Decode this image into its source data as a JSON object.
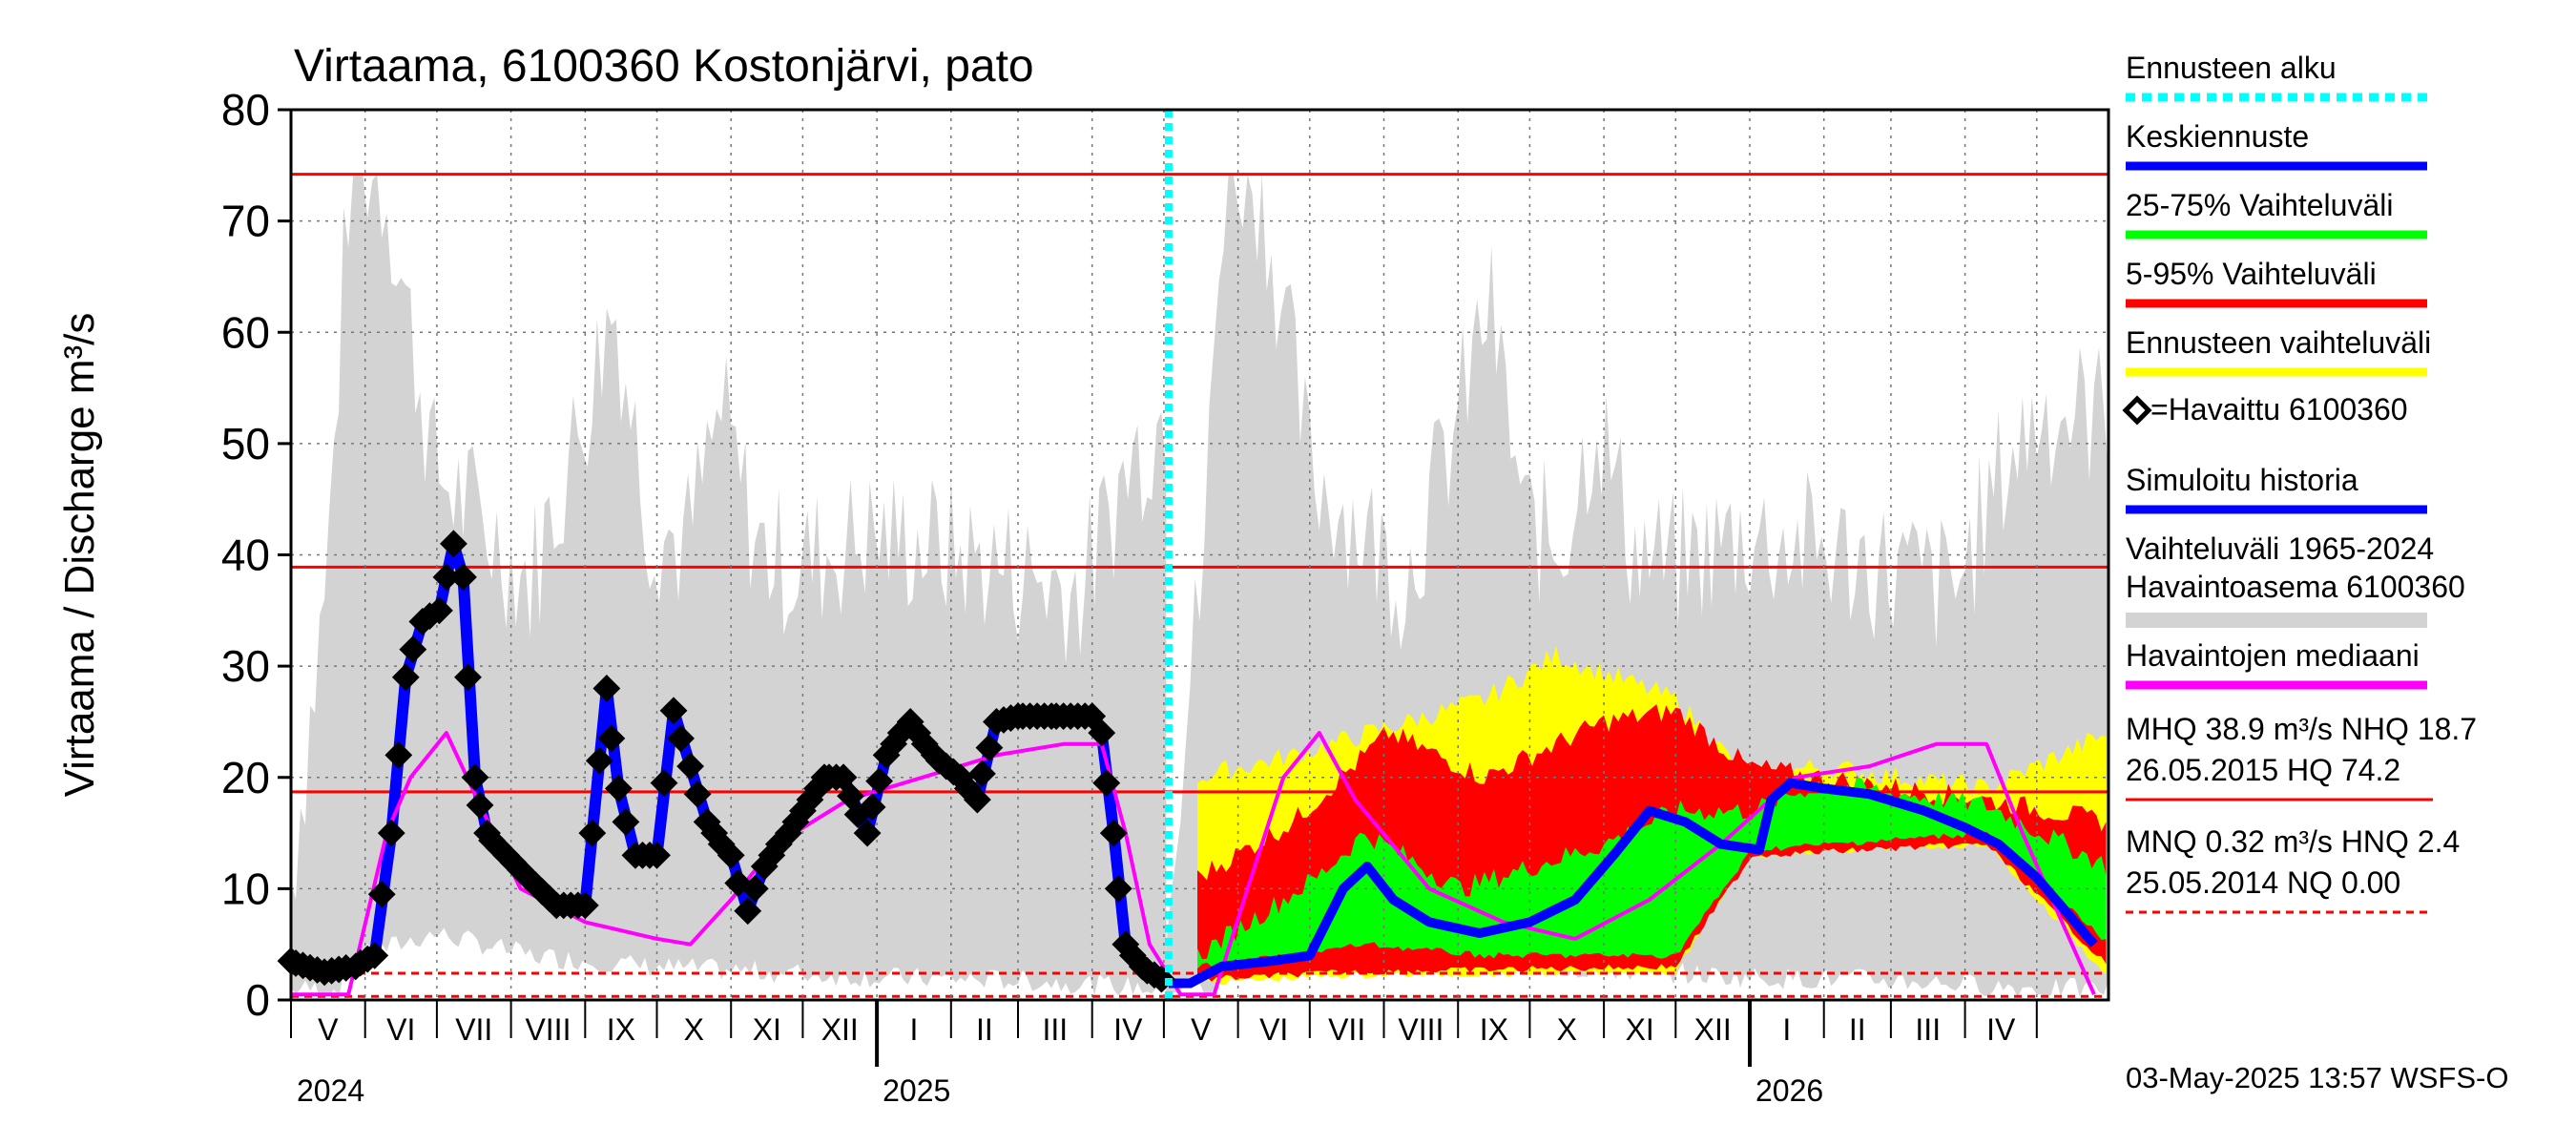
{
  "chart_data": {
    "type": "line",
    "title": "Virtaama, 6100360 Kostonjärvi, pato",
    "ylabel": "Virtaama / Discharge    m³/s",
    "ylim": [
      0,
      80
    ],
    "yticks": [
      "0",
      "10",
      "20",
      "30",
      "40",
      "50",
      "60",
      "70",
      "80"
    ],
    "months": [
      "V",
      "VI",
      "VII",
      "VIII",
      "IX",
      "X",
      "XI",
      "XII",
      "I",
      "II",
      "III",
      "IV",
      "V",
      "VI",
      "VII",
      "VIII",
      "IX",
      "X",
      "XI",
      "XII",
      "I",
      "II",
      "III",
      "IV"
    ],
    "years": [
      "2024",
      "2025",
      "2026"
    ],
    "x_start": "2024-05-01",
    "x_end": "2026-05-31",
    "forecast_start": "2025-05-03",
    "reference_lines": [
      {
        "label": "HQ",
        "value": 74.2,
        "style": "solid",
        "color": "#ff0000"
      },
      {
        "label": "MHQ",
        "value": 38.9,
        "style": "solid",
        "color": "#ff0000"
      },
      {
        "label": "NHQ",
        "value": 18.7,
        "style": "solid",
        "color": "#ff0000"
      },
      {
        "label": "HNQ",
        "value": 2.4,
        "style": "dashed",
        "color": "#ff0000"
      },
      {
        "label": "MNQ",
        "value": 0.32,
        "style": "dashed",
        "color": "#ff0000"
      }
    ],
    "series": [
      {
        "name": "Havaittu 6100360",
        "color": "#000000",
        "x": [
          "2024-05-01",
          "2024-05-15",
          "2024-05-28",
          "2024-06-05",
          "2024-06-12",
          "2024-06-18",
          "2024-06-25",
          "2024-07-02",
          "2024-07-08",
          "2024-07-12",
          "2024-07-17",
          "2024-07-22",
          "2024-07-30",
          "2024-08-08",
          "2024-08-20",
          "2024-09-01",
          "2024-09-10",
          "2024-09-15",
          "2024-09-22",
          "2024-10-01",
          "2024-10-08",
          "2024-10-15",
          "2024-10-22",
          "2024-11-01",
          "2024-11-08",
          "2024-11-15",
          "2024-11-25",
          "2024-12-01",
          "2024-12-10",
          "2024-12-18",
          "2024-12-28",
          "2025-01-05",
          "2025-01-15",
          "2025-01-25",
          "2025-02-05",
          "2025-02-12",
          "2025-02-20",
          "2025-03-01",
          "2025-03-15",
          "2025-04-01",
          "2025-04-05",
          "2025-04-10",
          "2025-04-15",
          "2025-04-22",
          "2025-05-03"
        ],
        "values": [
          3.5,
          2.5,
          3.0,
          4.0,
          15.0,
          29.0,
          34.0,
          35.0,
          41.0,
          38.0,
          20.0,
          15.0,
          13.0,
          11.0,
          8.5,
          8.5,
          28.0,
          19.0,
          13.0,
          13.0,
          26.0,
          21.0,
          16.0,
          13.0,
          8.0,
          12.0,
          15.0,
          17.0,
          20.0,
          20.0,
          15.0,
          22.0,
          25.0,
          22.0,
          20.0,
          18.0,
          25.0,
          25.5,
          25.5,
          25.5,
          24.0,
          15.0,
          5.0,
          3.0,
          1.5
        ]
      },
      {
        "name": "Havaintojen mediaani",
        "color": "#ff00ff",
        "x": [
          "2024-05-01",
          "2024-05-25",
          "2024-06-10",
          "2024-06-20",
          "2024-07-05",
          "2024-07-18",
          "2024-08-05",
          "2024-09-01",
          "2024-10-01",
          "2024-10-15",
          "2024-11-01",
          "2024-11-20",
          "2024-12-20",
          "2025-01-20",
          "2025-02-20",
          "2025-03-20",
          "2025-04-05",
          "2025-04-15",
          "2025-04-25",
          "2025-05-08",
          "2025-05-22",
          "2025-06-05",
          "2025-06-20",
          "2025-07-05",
          "2025-07-20",
          "2025-08-20",
          "2025-09-20",
          "2025-10-20",
          "2025-11-20",
          "2025-12-20",
          "2026-01-20",
          "2026-02-20",
          "2026-03-20",
          "2026-04-10",
          "2026-04-25",
          "2026-05-25"
        ],
        "values": [
          0.5,
          0.5,
          15.0,
          20.0,
          24.0,
          18.0,
          10.0,
          7.0,
          5.5,
          5.0,
          9.0,
          14.0,
          18.0,
          20.0,
          22.0,
          23.0,
          23.0,
          15.0,
          5.0,
          0.5,
          0.5,
          10.0,
          20.0,
          24.0,
          18.0,
          10.0,
          7.0,
          5.5,
          9.0,
          14.0,
          20.0,
          21.0,
          23.0,
          23.0,
          15.0,
          0.5
        ]
      },
      {
        "name": "Keskiennuste",
        "color": "#0000ff",
        "x": [
          "2025-05-03",
          "2025-05-12",
          "2025-05-25",
          "2025-06-15",
          "2025-07-01",
          "2025-07-15",
          "2025-07-25",
          "2025-08-05",
          "2025-08-20",
          "2025-09-10",
          "2025-10-01",
          "2025-10-20",
          "2025-11-05",
          "2025-11-20",
          "2025-12-05",
          "2025-12-20",
          "2026-01-05",
          "2026-01-10",
          "2026-01-18",
          "2026-02-01",
          "2026-02-20",
          "2026-03-15",
          "2026-04-01",
          "2026-04-15",
          "2026-05-01",
          "2026-05-25"
        ],
        "values": [
          1.5,
          1.5,
          3.0,
          3.5,
          4.0,
          10.0,
          12.0,
          9.0,
          7.0,
          6.0,
          7.0,
          9.0,
          13.0,
          17.0,
          16.0,
          14.0,
          13.5,
          18.0,
          19.5,
          19.0,
          18.5,
          17.0,
          15.5,
          14.0,
          11.0,
          5.0
        ]
      }
    ]
  },
  "legend": [
    {
      "label": "Ennusteen alku",
      "color": "#00ffff",
      "style": "dotted"
    },
    {
      "label": "Keskiennuste",
      "color": "#0000ff",
      "style": "solid"
    },
    {
      "label": "25-75% Vaihteluväli",
      "color": "#00ff00",
      "style": "solid"
    },
    {
      "label": "5-95% Vaihteluväli",
      "color": "#ff0000",
      "style": "solid"
    },
    {
      "label": "Ennusteen vaihteluväli",
      "color": "#ffff00",
      "style": "solid"
    },
    {
      "label": "=Havaittu 6100360",
      "color": "#000000",
      "style": "marker"
    },
    {
      "label": "Simuloitu historia",
      "color": "#0000ff",
      "style": "solid"
    },
    {
      "label": "Vaihteluväli 1965-2024",
      "label2": " Havaintoasema 6100360",
      "color": "#d3d3d3",
      "style": "solid"
    },
    {
      "label": "Havaintojen mediaani",
      "color": "#ff00ff",
      "style": "solid"
    }
  ],
  "stats": {
    "line1": "MHQ 38.9 m³/s NHQ 18.7",
    "line2": "26.05.2015 HQ 74.2",
    "line3": "MNQ 0.32 m³/s HNQ  2.4",
    "line4": "25.05.2014 NQ 0.00"
  },
  "footer": "03-May-2025 13:57 WSFS-O"
}
